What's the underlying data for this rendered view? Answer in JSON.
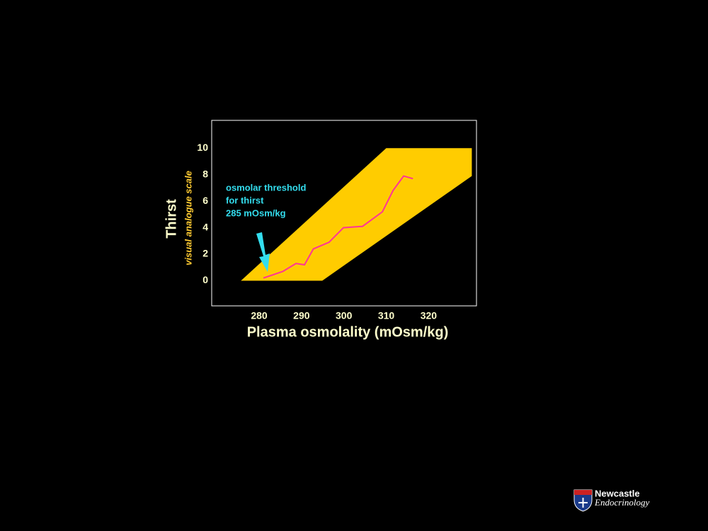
{
  "chart_data": {
    "type": "line",
    "x_label": "Plasma osmolality (mOsm/kg)",
    "y_label": "Thirst",
    "y_sublabel": "visual analogue scale",
    "annotation": [
      "osmolar threshold",
      "for thirst",
      "285 mOsm/kg"
    ],
    "xlim": [
      268.8,
      331.3
    ],
    "ylim": [
      -1.9,
      12.1
    ],
    "xticks": [
      280,
      290,
      300,
      310,
      320
    ],
    "yticks": [
      0,
      2,
      4,
      6,
      8,
      10
    ],
    "grid": false,
    "band": {
      "color": "#ffcc00",
      "upper": {
        "x": [
          275.7,
          310,
          330.2
        ],
        "values": [
          0,
          10,
          10
        ]
      },
      "lower": {
        "x": [
          294.9,
          330.2
        ],
        "values": [
          0,
          7.9
        ]
      }
    },
    "series": [
      {
        "color": "#ff3399",
        "x": [
          281,
          285.6,
          288.7,
          290.7,
          292.8,
          296.5,
          299.9,
          304.4,
          309.1,
          311.6,
          314.1,
          316.3
        ],
        "values": [
          0.2,
          0.7,
          1.3,
          1.2,
          2.4,
          2.9,
          4.0,
          4.1,
          5.2,
          6.8,
          7.9,
          7.7
        ]
      }
    ]
  },
  "footer": {
    "brand": "Newcastle",
    "sub": "Endocrinology"
  }
}
